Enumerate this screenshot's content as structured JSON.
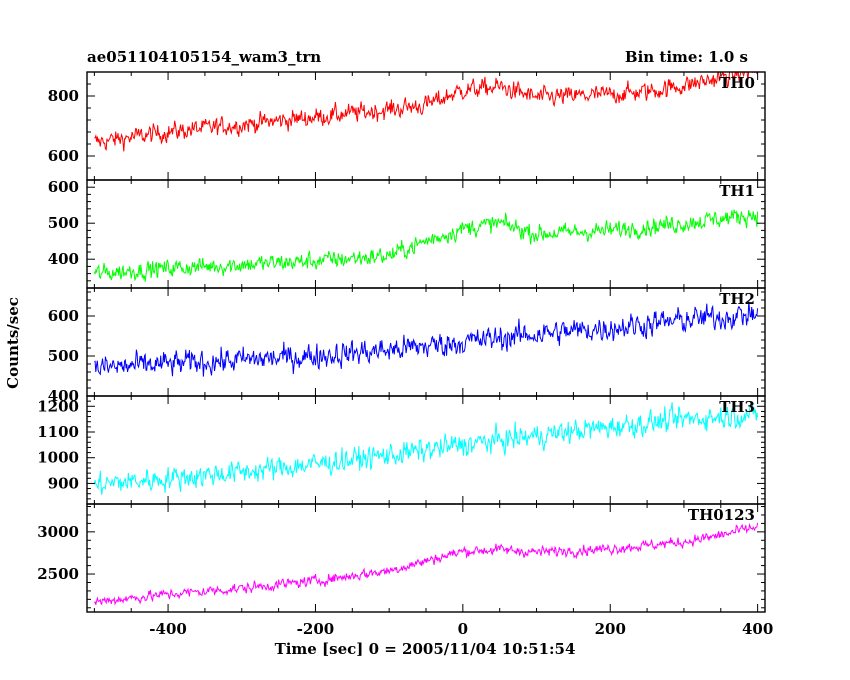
{
  "header": {
    "title": "ae051104105154_wam3_trn",
    "bin_time": "Bin time: 1.0 s"
  },
  "chart_data": {
    "type": "line",
    "xlabel": "Time [sec] 0 = 2005/11/04 10:51:54",
    "ylabel": "Counts/sec",
    "xlim": [
      -510,
      410
    ],
    "x_ticks": [
      -400,
      -200,
      0,
      200,
      400
    ],
    "x_start": -500,
    "x_end": 400,
    "bin": 1.0,
    "panels": [
      {
        "name": "TH0",
        "color": "#ff0000",
        "ylim": [
          520,
          880
        ],
        "y_ticks": [
          600,
          800
        ],
        "trend_x": [
          -500,
          -400,
          -300,
          -200,
          -100,
          -50,
          0,
          50,
          100,
          150,
          200,
          250,
          300,
          350,
          380,
          400
        ],
        "trend_y": [
          645,
          680,
          705,
          730,
          755,
          770,
          820,
          830,
          795,
          800,
          805,
          815,
          835,
          860,
          880,
          885
        ],
        "noise": 38
      },
      {
        "name": "TH1",
        "color": "#00ff00",
        "ylim": [
          320,
          620
        ],
        "y_ticks": [
          400,
          500,
          600
        ],
        "trend_x": [
          -500,
          -400,
          -300,
          -200,
          -100,
          -50,
          0,
          50,
          100,
          200,
          300,
          400
        ],
        "trend_y": [
          360,
          375,
          385,
          395,
          410,
          450,
          485,
          500,
          470,
          480,
          500,
          525
        ],
        "noise": 30
      },
      {
        "name": "TH2",
        "color": "#0000ff",
        "ylim": [
          400,
          670
        ],
        "y_ticks": [
          400,
          500,
          600
        ],
        "trend_x": [
          -500,
          -400,
          -300,
          -200,
          -100,
          0,
          100,
          200,
          300,
          400
        ],
        "trend_y": [
          470,
          480,
          490,
          500,
          515,
          535,
          555,
          570,
          590,
          605
        ],
        "noise": 38
      },
      {
        "name": "TH3",
        "color": "#00ffff",
        "ylim": [
          820,
          1240
        ],
        "y_ticks": [
          900,
          1000,
          1100,
          1200
        ],
        "trend_x": [
          -500,
          -400,
          -300,
          -200,
          -100,
          0,
          100,
          200,
          300,
          400
        ],
        "trend_y": [
          895,
          920,
          945,
          975,
          1010,
          1050,
          1085,
          1120,
          1150,
          1170
        ],
        "noise": 55
      },
      {
        "name": "TH0123",
        "color": "#ff00ff",
        "ylim": [
          2050,
          3330
        ],
        "y_ticks": [
          2500,
          3000
        ],
        "trend_x": [
          -500,
          -400,
          -300,
          -200,
          -100,
          0,
          50,
          100,
          200,
          300,
          350,
          400
        ],
        "trend_y": [
          2170,
          2260,
          2330,
          2420,
          2540,
          2770,
          2790,
          2760,
          2800,
          2880,
          2960,
          3060
        ],
        "noise": 75
      }
    ]
  }
}
